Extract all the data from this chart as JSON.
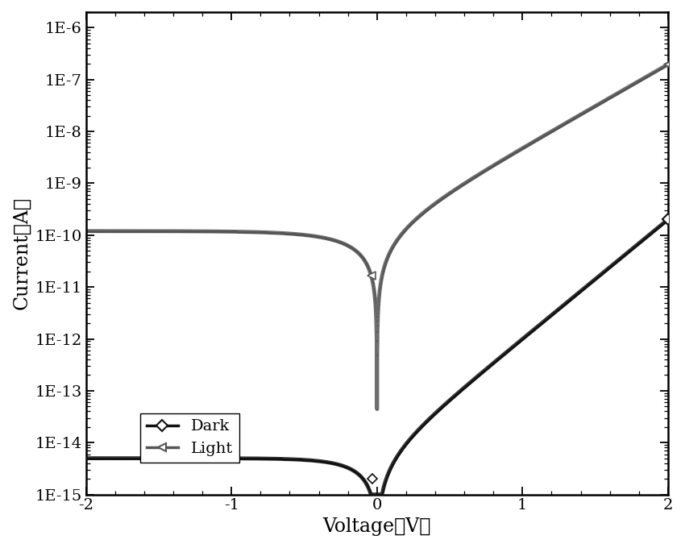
{
  "title": "",
  "xlabel": "Voltage（V）",
  "ylabel": "Current（A）",
  "xlim": [
    -2,
    2
  ],
  "ylim_log": [
    1e-15,
    2e-06
  ],
  "yticks": [
    1e-15,
    1e-14,
    1e-13,
    1e-12,
    1e-11,
    1e-10,
    1e-09,
    1e-08,
    1e-07,
    1e-06
  ],
  "ytick_labels": [
    "1E-15",
    "1E-14",
    "1E-13",
    "1E-12",
    "1E-11",
    "1E-10",
    "1E-9",
    "1E-8",
    "1E-7",
    "1E-6"
  ],
  "xticks": [
    -2,
    -1,
    0,
    1,
    2
  ],
  "dark_color": "#111111",
  "light_color": "#555555",
  "background_color": "#ffffff",
  "legend_dark": "Dark",
  "legend_light": "Light",
  "dark_I0": 5e-15,
  "dark_n_factor": 0.18,
  "light_I0": 1.2e-10,
  "light_n_factor": 0.18
}
